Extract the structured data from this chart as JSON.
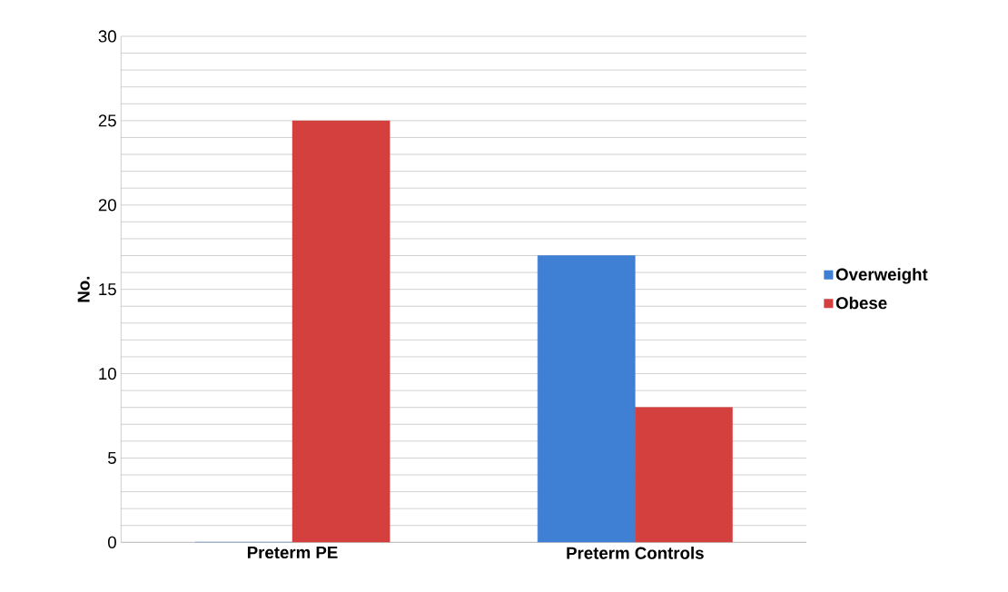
{
  "chart_data": {
    "type": "bar",
    "ylabel": "No.",
    "categories": [
      "Preterm PE",
      "Preterm Controls"
    ],
    "series": [
      {
        "name": "Overweight",
        "color": "#3f7fd4",
        "values": [
          0,
          17
        ]
      },
      {
        "name": "Obese",
        "color": "#d3403e",
        "values": [
          25,
          8
        ]
      }
    ],
    "ylim": [
      0,
      30
    ],
    "yticks": [
      0,
      {
        "value": 1,
        "label": null
      },
      {
        "value": 2,
        "label": null
      },
      {
        "value": 3,
        "label": null
      },
      {
        "value": 4,
        "label": null
      },
      5,
      {
        "value": 6,
        "label": null
      },
      {
        "value": 7,
        "label": null
      },
      {
        "value": 8,
        "label": null
      },
      {
        "value": 9,
        "label": null
      },
      10,
      {
        "value": 11,
        "label": null
      },
      {
        "value": 12,
        "label": null
      },
      {
        "value": 13,
        "label": null
      },
      {
        "value": 14,
        "label": null
      },
      15,
      {
        "value": 16,
        "label": null
      },
      {
        "value": 17,
        "label": null
      },
      {
        "value": 18,
        "label": null
      },
      {
        "value": 19,
        "label": null
      },
      20,
      {
        "value": 21,
        "label": null
      },
      {
        "value": 22,
        "label": null
      },
      {
        "value": 23,
        "label": null
      },
      {
        "value": 24,
        "label": null
      },
      25,
      {
        "value": 26,
        "label": null
      },
      {
        "value": 27,
        "label": null
      },
      {
        "value": 28,
        "label": null
      },
      {
        "value": 29,
        "label": null
      },
      30
    ],
    "grid": "y",
    "legend": "right"
  }
}
